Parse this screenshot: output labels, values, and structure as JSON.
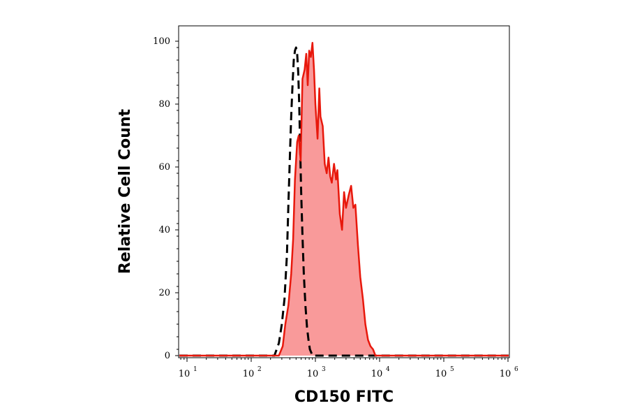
{
  "chart_data": {
    "type": "area",
    "title": "",
    "xlabel": "CD150 FITC",
    "ylabel": "Relative Cell Count",
    "x_scale": "log",
    "xlim": [
      7,
      10000000
    ],
    "ylim": [
      0,
      100
    ],
    "x_ticks": [
      {
        "base": "10",
        "exp": "1",
        "value": 10
      },
      {
        "base": "10",
        "exp": "2",
        "value": 100
      },
      {
        "base": "10",
        "exp": "3",
        "value": 1000
      },
      {
        "base": "10",
        "exp": "4",
        "value": 10000
      },
      {
        "base": "10",
        "exp": "5",
        "value": 100000
      },
      {
        "base": "10",
        "exp": "6",
        "value": 1000000
      }
    ],
    "y_ticks": [
      "0",
      "20",
      "40",
      "60",
      "80",
      "100"
    ],
    "y_tick_values": [
      0,
      20,
      40,
      60,
      80,
      100
    ],
    "grid": false,
    "legend": "none",
    "series": [
      {
        "role": "sample",
        "style": "filled-solid",
        "color": "#e8180c",
        "fill": "#f99a9a",
        "x": [
          7,
          270,
          310,
          340,
          380,
          420,
          450,
          480,
          520,
          550,
          590,
          630,
          680,
          720,
          760,
          800,
          850,
          900,
          950,
          1000,
          1080,
          1150,
          1200,
          1300,
          1400,
          1500,
          1600,
          1700,
          1800,
          1950,
          2100,
          2200,
          2400,
          2600,
          2800,
          3000,
          3300,
          3600,
          3900,
          4200,
          4600,
          5000,
          5500,
          6000,
          6600,
          7200,
          7900,
          8600,
          9200,
          10000000
        ],
        "y": [
          0,
          0,
          3,
          10,
          16,
          26,
          37,
          56,
          68,
          70,
          62,
          88,
          91,
          96,
          86,
          97,
          95,
          99.5,
          91,
          80,
          69,
          85,
          76,
          73,
          61,
          58,
          63,
          57,
          55,
          61,
          56,
          59,
          45,
          40,
          52,
          47,
          51,
          54,
          47,
          48,
          35,
          25,
          18,
          10,
          5,
          3,
          2,
          0,
          0,
          0
        ]
      },
      {
        "role": "isotype-control",
        "style": "dashed",
        "color": "#000000",
        "x": [
          7,
          230,
          270,
          300,
          330,
          360,
          380,
          400,
          420,
          440,
          460,
          480,
          500,
          520,
          540,
          560,
          580,
          600,
          630,
          660,
          700,
          740,
          780,
          820,
          860,
          900,
          960,
          10000000
        ],
        "y": [
          0,
          0,
          4,
          10,
          18,
          32,
          48,
          63,
          76,
          86,
          94,
          97,
          98,
          96,
          90,
          80,
          66,
          52,
          38,
          26,
          16,
          9,
          5,
          2,
          1,
          0,
          0,
          0
        ]
      }
    ]
  }
}
